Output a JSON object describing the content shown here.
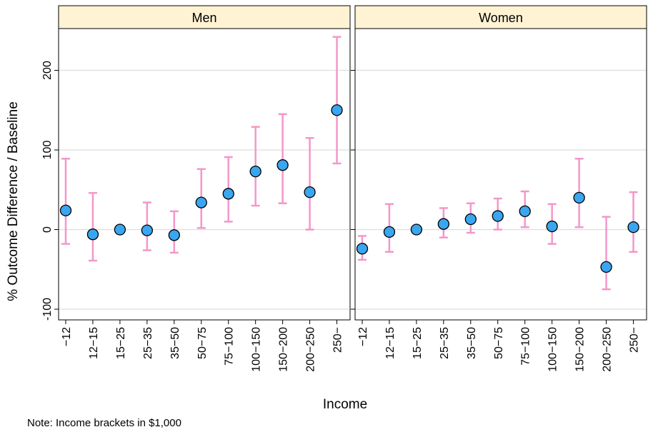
{
  "chart_data": {
    "type": "scatter",
    "ylabel": "% Outcome Difference / Baseline",
    "xlabel": "Income",
    "note": "Note: Income brackets in $1,000",
    "categories": [
      "−12",
      "12−15",
      "15−25",
      "25−35",
      "35−50",
      "50−75",
      "75−100",
      "100−150",
      "150−200",
      "200−250",
      "250−"
    ],
    "ylim": [
      -110,
      250
    ],
    "yticks": [
      -100,
      0,
      100,
      200
    ],
    "grid": true,
    "colors": {
      "point_fill": "#3aa6f0",
      "point_stroke": "#000000",
      "errorbar": "#f497c8",
      "strip_fill": "#fff3d3",
      "gridline": "#dddddd"
    },
    "panels": [
      {
        "title": "Men",
        "values": [
          24,
          -6,
          0,
          -1,
          -7,
          34,
          45,
          73,
          81,
          47,
          150
        ],
        "lower": [
          -18,
          -39,
          0,
          -26,
          -29,
          2,
          10,
          30,
          33,
          0,
          83
        ],
        "upper": [
          89,
          46,
          0,
          34,
          23,
          76,
          91,
          129,
          145,
          115,
          242
        ]
      },
      {
        "title": "Women",
        "values": [
          -24,
          -3,
          0,
          7,
          13,
          17,
          23,
          4,
          40,
          -47,
          3
        ],
        "lower": [
          -38,
          -28,
          0,
          -10,
          -4,
          0,
          3,
          -18,
          3,
          -75,
          -28
        ],
        "upper": [
          -8,
          32,
          0,
          27,
          33,
          39,
          48,
          32,
          89,
          16,
          47
        ]
      }
    ]
  }
}
